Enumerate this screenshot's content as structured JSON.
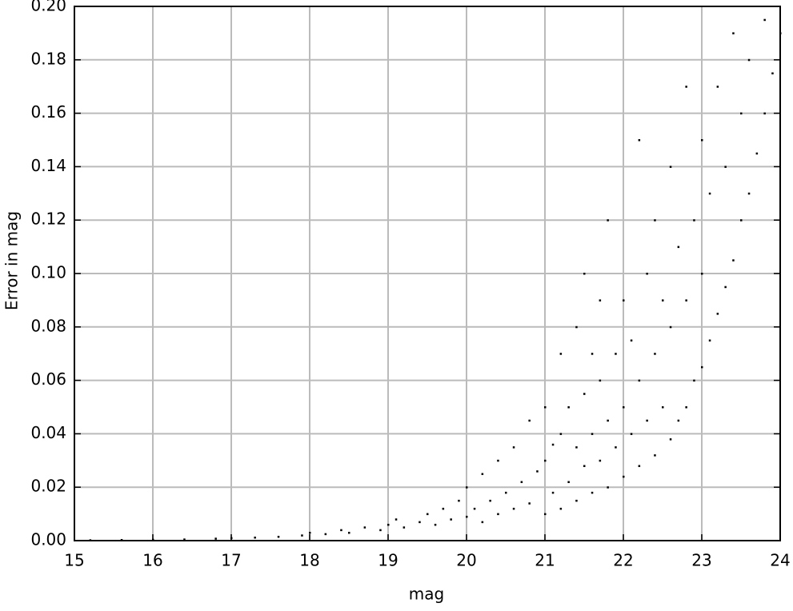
{
  "chart_data": {
    "type": "scatter",
    "x_label": "mag",
    "y_label": "Error in mag",
    "color": "#000000",
    "grid": true,
    "xlim": [
      15,
      24
    ],
    "ylim": [
      0,
      0.2
    ],
    "xticks": [
      15,
      16,
      17,
      18,
      19,
      20,
      21,
      22,
      23,
      24
    ],
    "yticks": [
      {
        "value": 0,
        "label": "0.00"
      },
      {
        "value": 0.02,
        "label": "0.02"
      },
      {
        "value": 0.04,
        "label": "0.04"
      },
      {
        "value": 0.06,
        "label": "0.06"
      },
      {
        "value": 0.08,
        "label": "0.08"
      },
      {
        "value": 0.1,
        "label": "0.10"
      },
      {
        "value": 0.12,
        "label": "0.12"
      },
      {
        "value": 0.14,
        "label": "0.14"
      },
      {
        "value": 0.16,
        "label": "0.16"
      },
      {
        "value": 0.18,
        "label": "0.18"
      },
      {
        "value": 0.2,
        "label": "0.20"
      }
    ],
    "x": [
      15.2,
      15.6,
      16.0,
      16.4,
      16.8,
      17.0,
      17.3,
      17.6,
      17.9,
      18.0,
      18.2,
      18.4,
      18.5,
      18.7,
      18.9,
      19.0,
      19.1,
      19.2,
      19.4,
      19.5,
      19.6,
      19.7,
      19.8,
      19.9,
      20.0,
      20.0,
      20.1,
      20.2,
      20.2,
      20.3,
      20.4,
      20.4,
      20.5,
      20.6,
      20.6,
      20.7,
      20.8,
      20.8,
      20.9,
      21.0,
      21.0,
      21.0,
      21.1,
      21.1,
      21.2,
      21.2,
      21.2,
      21.3,
      21.3,
      21.4,
      21.4,
      21.4,
      21.5,
      21.5,
      21.5,
      21.6,
      21.6,
      21.6,
      21.7,
      21.7,
      21.7,
      21.8,
      21.8,
      21.8,
      21.9,
      21.9,
      22.0,
      22.0,
      22.0,
      22.1,
      22.1,
      22.2,
      22.2,
      22.2,
      22.3,
      22.3,
      22.4,
      22.4,
      22.4,
      22.5,
      22.5,
      22.6,
      22.6,
      22.6,
      22.7,
      22.7,
      22.8,
      22.8,
      22.8,
      22.9,
      22.9,
      23.0,
      23.0,
      23.0,
      23.1,
      23.1,
      23.2,
      23.2,
      23.3,
      23.3,
      23.4,
      23.4,
      23.5,
      23.5,
      23.6,
      23.6,
      23.7,
      23.8,
      23.8,
      23.9,
      24.0
    ],
    "values": [
      0.0002,
      0.0003,
      0.0004,
      0.0005,
      0.0008,
      0.001,
      0.0012,
      0.0015,
      0.002,
      0.003,
      0.0025,
      0.004,
      0.003,
      0.005,
      0.004,
      0.006,
      0.008,
      0.005,
      0.007,
      0.01,
      0.006,
      0.012,
      0.008,
      0.015,
      0.009,
      0.02,
      0.012,
      0.025,
      0.007,
      0.015,
      0.01,
      0.03,
      0.018,
      0.012,
      0.035,
      0.022,
      0.014,
      0.045,
      0.026,
      0.01,
      0.03,
      0.05,
      0.018,
      0.036,
      0.012,
      0.04,
      0.07,
      0.022,
      0.05,
      0.015,
      0.035,
      0.08,
      0.028,
      0.055,
      0.1,
      0.018,
      0.04,
      0.07,
      0.03,
      0.06,
      0.09,
      0.02,
      0.045,
      0.12,
      0.035,
      0.07,
      0.024,
      0.05,
      0.09,
      0.04,
      0.075,
      0.028,
      0.06,
      0.15,
      0.045,
      0.1,
      0.032,
      0.07,
      0.12,
      0.05,
      0.09,
      0.038,
      0.08,
      0.14,
      0.045,
      0.11,
      0.05,
      0.09,
      0.17,
      0.06,
      0.12,
      0.065,
      0.1,
      0.15,
      0.075,
      0.13,
      0.085,
      0.17,
      0.095,
      0.14,
      0.105,
      0.19,
      0.12,
      0.16,
      0.13,
      0.18,
      0.145,
      0.16,
      0.195,
      0.175,
      0.19
    ]
  }
}
